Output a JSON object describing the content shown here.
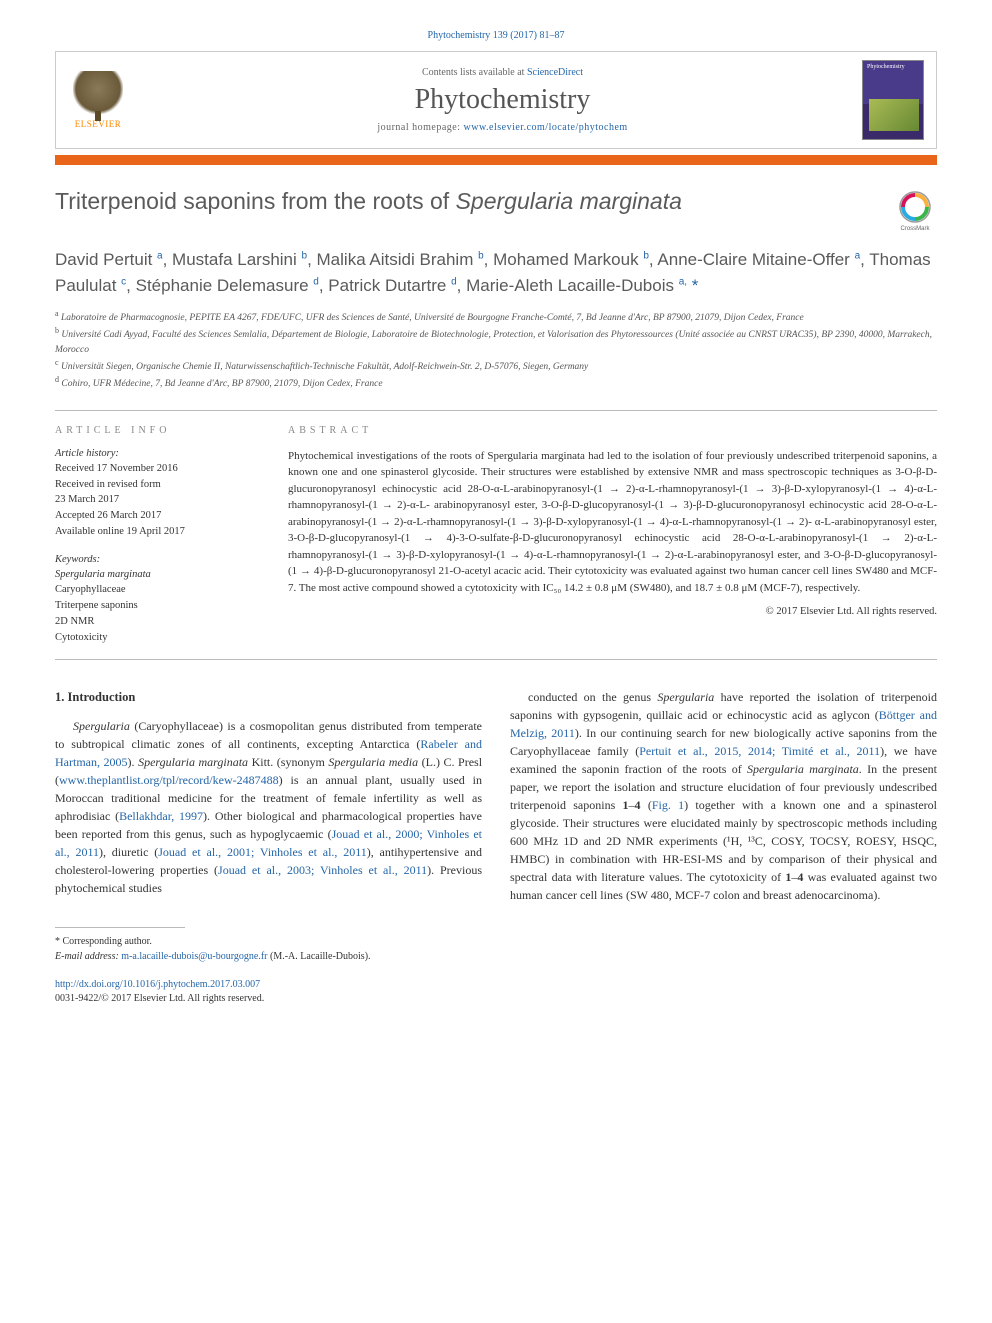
{
  "journal_ref": "Phytochemistry 139 (2017) 81–87",
  "header": {
    "publisher_name": "ELSEVIER",
    "contents_text": "Contents lists available at ",
    "contents_link": "ScienceDirect",
    "journal_name": "Phytochemistry",
    "homepage_label": "journal homepage: ",
    "homepage_url": "www.elsevier.com/locate/phytochem",
    "cover_label": "Phytochemistry"
  },
  "title": {
    "plain": "Triterpenoid saponins from the roots of ",
    "italic": "Spergularia marginata"
  },
  "crossmark_label": "CrossMark",
  "authors_html": "David Pertuit <sup>a</sup>, Mustafa Larshini <sup>b</sup>, Malika Aitsidi Brahim <sup>b</sup>, Mohamed Markouk <sup>b</sup>, Anne-Claire Mitaine-Offer <sup>a</sup>, Thomas Paululat <sup>c</sup>, Stéphanie Delemasure <sup>d</sup>, Patrick Dutartre <sup>d</sup>, Marie-Aleth Lacaille-Dubois <sup>a,</sup> <span class=\"corr\">*</span>",
  "affiliations": [
    {
      "sup": "a",
      "text": "Laboratoire de Pharmacognosie, PEPITE EA 4267, FDE/UFC, UFR des Sciences de Santé, Université de Bourgogne Franche-Comté, 7, Bd Jeanne d'Arc, BP 87900, 21079, Dijon Cedex, France"
    },
    {
      "sup": "b",
      "text": "Université Cadi Ayyad, Faculté des Sciences Semlalia, Département de Biologie, Laboratoire de Biotechnologie, Protection, et Valorisation des Phytoressources (Unité associée au CNRST URAC35), BP 2390, 40000, Marrakech, Morocco"
    },
    {
      "sup": "c",
      "text": "Universität Siegen, Organische Chemie II, Naturwissenschaftlich-Technische Fakultät, Adolf-Reichwein-Str. 2, D-57076, Siegen, Germany"
    },
    {
      "sup": "d",
      "text": "Cohiro, UFR Médecine, 7, Bd Jeanne d'Arc, BP 87900, 21079, Dijon Cedex, France"
    }
  ],
  "article_info": {
    "label": "ARTICLE INFO",
    "history_label": "Article history:",
    "history": [
      "Received 17 November 2016",
      "Received in revised form",
      "23 March 2017",
      "Accepted 26 March 2017",
      "Available online 19 April 2017"
    ],
    "keywords_label": "Keywords:",
    "keywords": [
      {
        "text": "Spergularia marginata",
        "italic": true
      },
      {
        "text": "Caryophyllaceae",
        "italic": false
      },
      {
        "text": "Triterpene saponins",
        "italic": false
      },
      {
        "text": "2D NMR",
        "italic": false
      },
      {
        "text": "Cytotoxicity",
        "italic": false
      }
    ]
  },
  "abstract": {
    "label": "ABSTRACT",
    "text": "Phytochemical investigations of the roots of Spergularia marginata had led to the isolation of four previously undescribed triterpenoid saponins, a known one and one spinasterol glycoside. Their structures were established by extensive NMR and mass spectroscopic techniques as 3-O-β-D-glucuronopyranosyl echinocystic acid 28-O-α-L-arabinopyranosyl-(1 → 2)-α-L-rhamnopyranosyl-(1 → 3)-β-D-xylopyranosyl-(1 → 4)-α-L-rhamnopyranosyl-(1 → 2)-α-L- arabinopyranosyl ester, 3-O-β-D-glucopyranosyl-(1 → 3)-β-D-glucuronopyranosyl echinocystic acid 28-O-α-L-arabinopyranosyl-(1 → 2)-α-L-rhamnopyranosyl-(1 → 3)-β-D-xylopyranosyl-(1 → 4)-α-L-rhamnopyranosyl-(1 → 2)- α-L-arabinopyranosyl ester, 3-O-β-D-glucopyranosyl-(1 → 4)-3-O-sulfate-β-D-glucuronopyranosyl echinocystic acid 28-O-α-L-arabinopyranosyl-(1 → 2)-α-L-rhamnopyranosyl-(1 → 3)-β-D-xylopyranosyl-(1 → 4)-α-L-rhamnopyranosyl-(1 → 2)-α-L-arabinopyranosyl ester, and 3-O-β-D-glucopyranosyl-(1 → 4)-β-D-glucuronopyranosyl 21-O-acetyl acacic acid. Their cytotoxicity was evaluated against two human cancer cell lines SW480 and MCF-7. The most active compound showed a cytotoxicity with IC₅₀ 14.2 ± 0.8 μM (SW480), and 18.7 ± 0.8 μM (MCF-7), respectively.",
    "copyright": "© 2017 Elsevier Ltd. All rights reserved."
  },
  "body": {
    "heading": "1. Introduction",
    "col1": "Spergularia (Caryophyllaceae) is a cosmopolitan genus distributed from temperate to subtropical climatic zones of all continents, excepting Antarctica (Rabeler and Hartman, 2005). Spergularia marginata Kitt. (synonym Spergularia media (L.) C. Presl (www.theplantlist.org/tpl/record/kew-2487488) is an annual plant, usually used in Moroccan traditional medicine for the treatment of female infertility as well as aphrodisiac (Bellakhdar, 1997). Other biological and pharmacological properties have been reported from this genus, such as hypoglycaemic (Jouad et al., 2000; Vinholes et al., 2011), diuretic (Jouad et al., 2001; Vinholes et al., 2011), antihypertensive and cholesterol-lowering properties (Jouad et al., 2003; Vinholes et al., 2011). Previous phytochemical studies",
    "col2": "conducted on the genus Spergularia have reported the isolation of triterpenoid saponins with gypsogenin, quillaic acid or echinocystic acid as aglycon (Böttger and Melzig, 2011). In our continuing search for new biologically active saponins from the Caryophyllaceae family (Pertuit et al., 2015, 2014; Timité et al., 2011), we have examined the saponin fraction of the roots of Spergularia marginata. In the present paper, we report the isolation and structure elucidation of four previously undescribed triterpenoid saponins 1–4 (Fig. 1) together with a known one and a spinasterol glycoside. Their structures were elucidated mainly by spectroscopic methods including 600 MHz 1D and 2D NMR experiments (¹H, ¹³C, COSY, TOCSY, ROESY, HSQC, HMBC) in combination with HR-ESI-MS and by comparison of their physical and spectral data with literature values. The cytotoxicity of 1–4 was evaluated against two human cancer cell lines (SW 480, MCF-7 colon and breast adenocarcinoma)."
  },
  "footer": {
    "corr_label": "* Corresponding author.",
    "email_label": "E-mail address: ",
    "email": "m-a.lacaille-dubois@u-bourgogne.fr",
    "email_suffix": " (M.-A. Lacaille-Dubois).",
    "doi": "http://dx.doi.org/10.1016/j.phytochem.2017.03.007",
    "issn": "0031-9422/© 2017 Elsevier Ltd. All rights reserved."
  },
  "colors": {
    "link": "#2566a8",
    "orange_bar": "#e8651a",
    "title_gray": "#5a5a5a",
    "body_text": "#333333",
    "border": "#bbbbbb",
    "publisher_orange": "#ff8800"
  }
}
